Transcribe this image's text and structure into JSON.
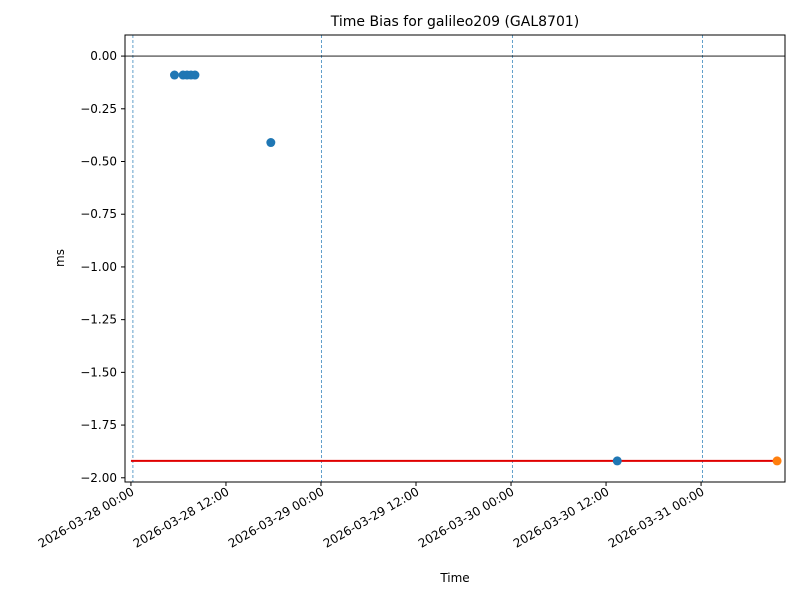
{
  "chart_data": {
    "type": "scatter",
    "title": "Time Bias for galileo209 (GAL8701)",
    "xlabel": "Time",
    "ylabel": "ms",
    "xlim": [
      "2026-03-27 23:15",
      "2026-03-31 10:36"
    ],
    "xticks": [
      "2026-03-28 00:00",
      "2026-03-28 12:00",
      "2026-03-29 00:00",
      "2026-03-29 12:00",
      "2026-03-30 00:00",
      "2026-03-30 12:00",
      "2026-03-31 00:00"
    ],
    "ylim": [
      -2.02,
      0.1
    ],
    "yticks": [
      {
        "value": 0,
        "label": "0.00"
      },
      {
        "value": -0.25,
        "label": "−0.25"
      },
      {
        "value": -0.5,
        "label": "−0.50"
      },
      {
        "value": -0.75,
        "label": "−0.75"
      },
      {
        "value": -1,
        "label": "−1.00"
      },
      {
        "value": -1.25,
        "label": "−1.25"
      },
      {
        "value": -1.5,
        "label": "−1.50"
      },
      {
        "value": -1.75,
        "label": "−1.75"
      },
      {
        "value": -2,
        "label": "−2.00"
      }
    ],
    "series": [
      {
        "color": "#1f77b4",
        "x": [
          "2026-03-28 05:30",
          "2026-03-28 06:35",
          "2026-03-28 07:05",
          "2026-03-28 07:35",
          "2026-03-28 08:05",
          "2026-03-28 17:40",
          "2026-03-30 13:25"
        ],
        "values": [
          -0.09,
          -0.09,
          -0.09,
          -0.09,
          -0.09,
          -0.41,
          -1.92
        ]
      },
      {
        "color": "#ff7f0e",
        "x": [
          "2026-03-31 09:36"
        ],
        "values": [
          -1.92
        ]
      }
    ],
    "lines": [
      {
        "color": "#e00000",
        "x": [
          "2026-03-28 00:00",
          "2026-03-31 09:36"
        ],
        "values": [
          -1.92,
          -1.92
        ]
      }
    ],
    "hline": 0,
    "vlines": [
      "2026-03-28 00:15",
      "2026-03-29 00:05",
      "2026-03-30 00:10",
      "2026-03-31 00:10"
    ],
    "vline_color": "#1f77b4"
  }
}
